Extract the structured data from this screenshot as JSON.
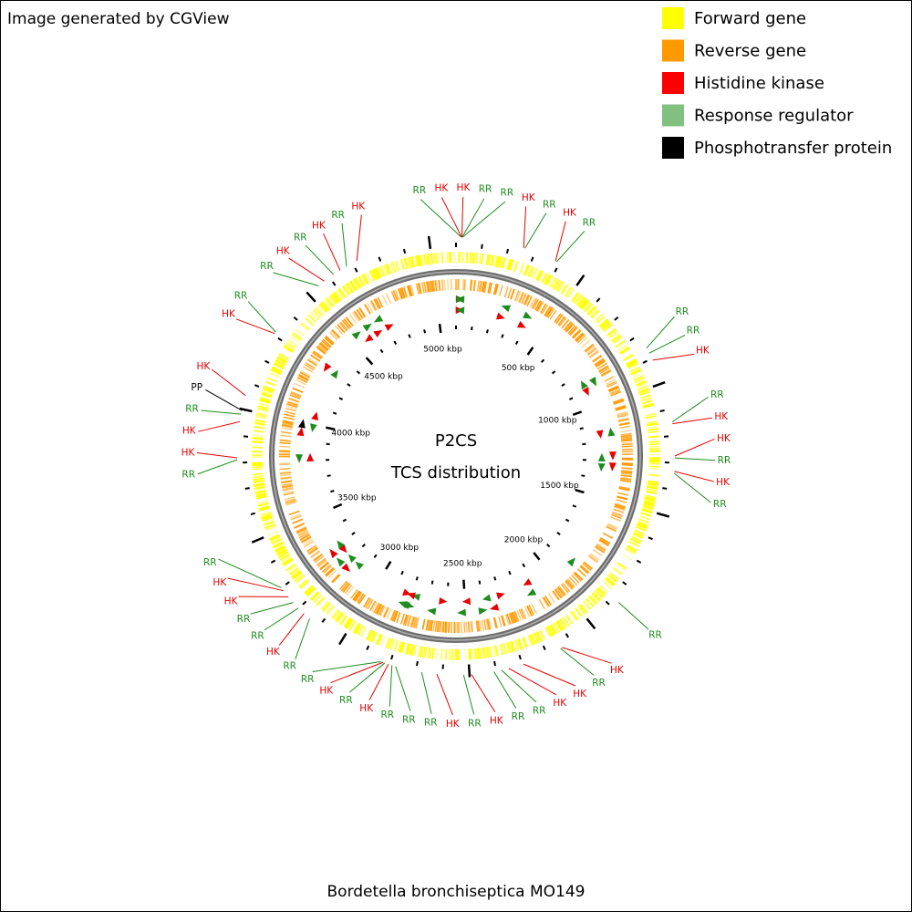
{
  "header": "Image generated by CGView",
  "legend": [
    {
      "label": "Forward gene",
      "color": "#ffff00"
    },
    {
      "label": "Reverse gene",
      "color": "#ff9900"
    },
    {
      "label": "Histidine kinase",
      "color": "#ff0000"
    },
    {
      "label": "Response regulator",
      "color": "#80c080"
    },
    {
      "label": "Phosphotransfer protein",
      "color": "#000000"
    }
  ],
  "center": {
    "title": "P2CS",
    "subtitle": "TCS distribution"
  },
  "footer": "Bordetella bronchiseptica MO149",
  "ring": {
    "range_kbp": [
      0,
      5100
    ],
    "ticks": [
      {
        "value": 500,
        "label": "500 kbp"
      },
      {
        "value": 1000,
        "label": "1000 kbp"
      },
      {
        "value": 1500,
        "label": "1500 kbp"
      },
      {
        "value": 2000,
        "label": "2000 kbp"
      },
      {
        "value": 2500,
        "label": "2500 kbp"
      },
      {
        "value": 3000,
        "label": "3000 kbp"
      },
      {
        "value": 3500,
        "label": "3500 kbp"
      },
      {
        "value": 4000,
        "label": "4000 kbp"
      },
      {
        "value": 4500,
        "label": "4500 kbp"
      },
      {
        "value": 5000,
        "label": "5000 kbp"
      }
    ],
    "minor_ticks": [
      0,
      100,
      200,
      300,
      400,
      500,
      600,
      700,
      800,
      900,
      1000,
      1100,
      1200,
      1300,
      1400,
      1500,
      1600,
      1700,
      1800,
      1900,
      2000,
      2100,
      2200,
      2300,
      2400,
      2500,
      2600,
      2700,
      2800,
      2900,
      3000,
      3100,
      3200,
      3300,
      3400,
      3500,
      3600,
      3700,
      3800,
      3900,
      4000,
      4100,
      4200,
      4300,
      4400,
      4500,
      4600,
      4700,
      4800,
      4900,
      5000
    ]
  },
  "features": [
    {
      "label": "RR",
      "color": "#1e8c1e",
      "position_kbp": 20
    },
    {
      "label": "HK",
      "color": "#e60000",
      "position_kbp": 21
    },
    {
      "label": "HK",
      "color": "#e60000",
      "position_kbp": 22
    },
    {
      "label": "RR",
      "color": "#1e8c1e",
      "position_kbp": 23
    },
    {
      "label": "RR",
      "color": "#1e8c1e",
      "position_kbp": 24
    },
    {
      "label": "HK",
      "color": "#e60000",
      "position_kbp": 255
    },
    {
      "label": "RR",
      "color": "#1e8c1e",
      "position_kbp": 260
    },
    {
      "label": "HK",
      "color": "#e60000",
      "position_kbp": 383
    },
    {
      "label": "RR",
      "color": "#1e8c1e",
      "position_kbp": 388
    },
    {
      "label": "RR",
      "color": "#1e8c1e",
      "position_kbp": 857
    },
    {
      "label": "RR",
      "color": "#1e8c1e",
      "position_kbp": 878
    },
    {
      "label": "HK",
      "color": "#e60000",
      "position_kbp": 907
    },
    {
      "label": "RR",
      "color": "#1e8c1e",
      "position_kbp": 1148
    },
    {
      "label": "HK",
      "color": "#e60000",
      "position_kbp": 1155
    },
    {
      "label": "HK",
      "color": "#e60000",
      "position_kbp": 1275
    },
    {
      "label": "RR",
      "color": "#1e8c1e",
      "position_kbp": 1282
    },
    {
      "label": "HK",
      "color": "#e60000",
      "position_kbp": 1332
    },
    {
      "label": "RR",
      "color": "#1e8c1e",
      "position_kbp": 1339
    },
    {
      "label": "RR",
      "color": "#1e8c1e",
      "position_kbp": 1870
    },
    {
      "label": "HK",
      "color": "#e60000",
      "position_kbp": 2139
    },
    {
      "label": "RR",
      "color": "#1e8c1e",
      "position_kbp": 2146
    },
    {
      "label": "HK",
      "color": "#e60000",
      "position_kbp": 2295
    },
    {
      "label": "HK",
      "color": "#e60000",
      "position_kbp": 2352
    },
    {
      "label": "RR",
      "color": "#1e8c1e",
      "position_kbp": 2380
    },
    {
      "label": "RR",
      "color": "#1e8c1e",
      "position_kbp": 2409
    },
    {
      "label": "HK",
      "color": "#e60000",
      "position_kbp": 2493
    },
    {
      "label": "RR",
      "color": "#1e8c1e",
      "position_kbp": 2522
    },
    {
      "label": "HK",
      "color": "#e60000",
      "position_kbp": 2621
    },
    {
      "label": "RR",
      "color": "#1e8c1e",
      "position_kbp": 2678
    },
    {
      "label": "RR",
      "color": "#1e8c1e",
      "position_kbp": 2777
    },
    {
      "label": "RR",
      "color": "#1e8c1e",
      "position_kbp": 2791
    },
    {
      "label": "HK",
      "color": "#e60000",
      "position_kbp": 2805
    },
    {
      "label": "RR",
      "color": "#1e8c1e",
      "position_kbp": 2819
    },
    {
      "label": "HK",
      "color": "#e60000",
      "position_kbp": 2826
    },
    {
      "label": "RR",
      "color": "#1e8c1e",
      "position_kbp": 2834
    },
    {
      "label": "RR",
      "color": "#1e8c1e",
      "position_kbp": 3145
    },
    {
      "label": "HK",
      "color": "#e60000",
      "position_kbp": 3173
    },
    {
      "label": "RR",
      "color": "#1e8c1e",
      "position_kbp": 3202
    },
    {
      "label": "RR",
      "color": "#1e8c1e",
      "position_kbp": 3230
    },
    {
      "label": "HK",
      "color": "#e60000",
      "position_kbp": 3258
    },
    {
      "label": "HK",
      "color": "#e60000",
      "position_kbp": 3287
    },
    {
      "label": "RR",
      "color": "#1e8c1e",
      "position_kbp": 3301
    },
    {
      "label": "RR",
      "color": "#1e8c1e",
      "position_kbp": 3811
    },
    {
      "label": "HK",
      "color": "#e60000",
      "position_kbp": 3818
    },
    {
      "label": "HK",
      "color": "#e60000",
      "position_kbp": 3953
    },
    {
      "label": "RR",
      "color": "#1e8c1e",
      "position_kbp": 3981
    },
    {
      "label": "PP",
      "color": "#000000",
      "position_kbp": 3995
    },
    {
      "label": "HK",
      "color": "#e60000",
      "position_kbp": 4052
    },
    {
      "label": "HK",
      "color": "#e60000",
      "position_kbp": 4307
    },
    {
      "label": "RR",
      "color": "#1e8c1e",
      "position_kbp": 4314
    },
    {
      "label": "RR",
      "color": "#1e8c1e",
      "position_kbp": 4548
    },
    {
      "label": "HK",
      "color": "#e60000",
      "position_kbp": 4576
    },
    {
      "label": "RR",
      "color": "#1e8c1e",
      "position_kbp": 4618
    },
    {
      "label": "HK",
      "color": "#e60000",
      "position_kbp": 4647
    },
    {
      "label": "RR",
      "color": "#1e8c1e",
      "position_kbp": 4675
    },
    {
      "label": "HK",
      "color": "#e60000",
      "position_kbp": 4718
    }
  ]
}
